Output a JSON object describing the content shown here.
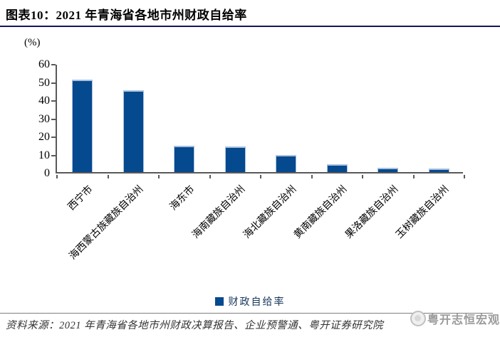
{
  "header": {
    "title": "图表10：2021 年青海省各地市州财政自给率"
  },
  "chart_data": {
    "type": "bar",
    "title": "2021 年青海省各地市州财政自给率",
    "unit_label": "(%)",
    "categories": [
      "西宁市",
      "海西蒙古族藏族自治州",
      "海东市",
      "海南藏族自治州",
      "海北藏族自治州",
      "黄南藏族自治州",
      "果洛藏族自治州",
      "玉树藏族自治州"
    ],
    "values": [
      51,
      45,
      14.5,
      14,
      9.5,
      4.2,
      2.5,
      2
    ],
    "series_name": "财政自给率",
    "xlabel": "",
    "ylabel": "(%)",
    "ylim": [
      0,
      60
    ],
    "yticks": [
      0,
      10,
      20,
      30,
      40,
      50,
      60
    ],
    "grid": false,
    "legend_position": "bottom",
    "bar_color": "#05498e",
    "bar_edge_color": "#a9c1e0",
    "axis_color": "#595959"
  },
  "legend": {
    "label": "财政自给率"
  },
  "footer": {
    "source": "资料来源：2021 年青海省各地市州财政决算报告、企业预警通、粤开证券研究院",
    "watermark": "粤开志恒宏观"
  }
}
